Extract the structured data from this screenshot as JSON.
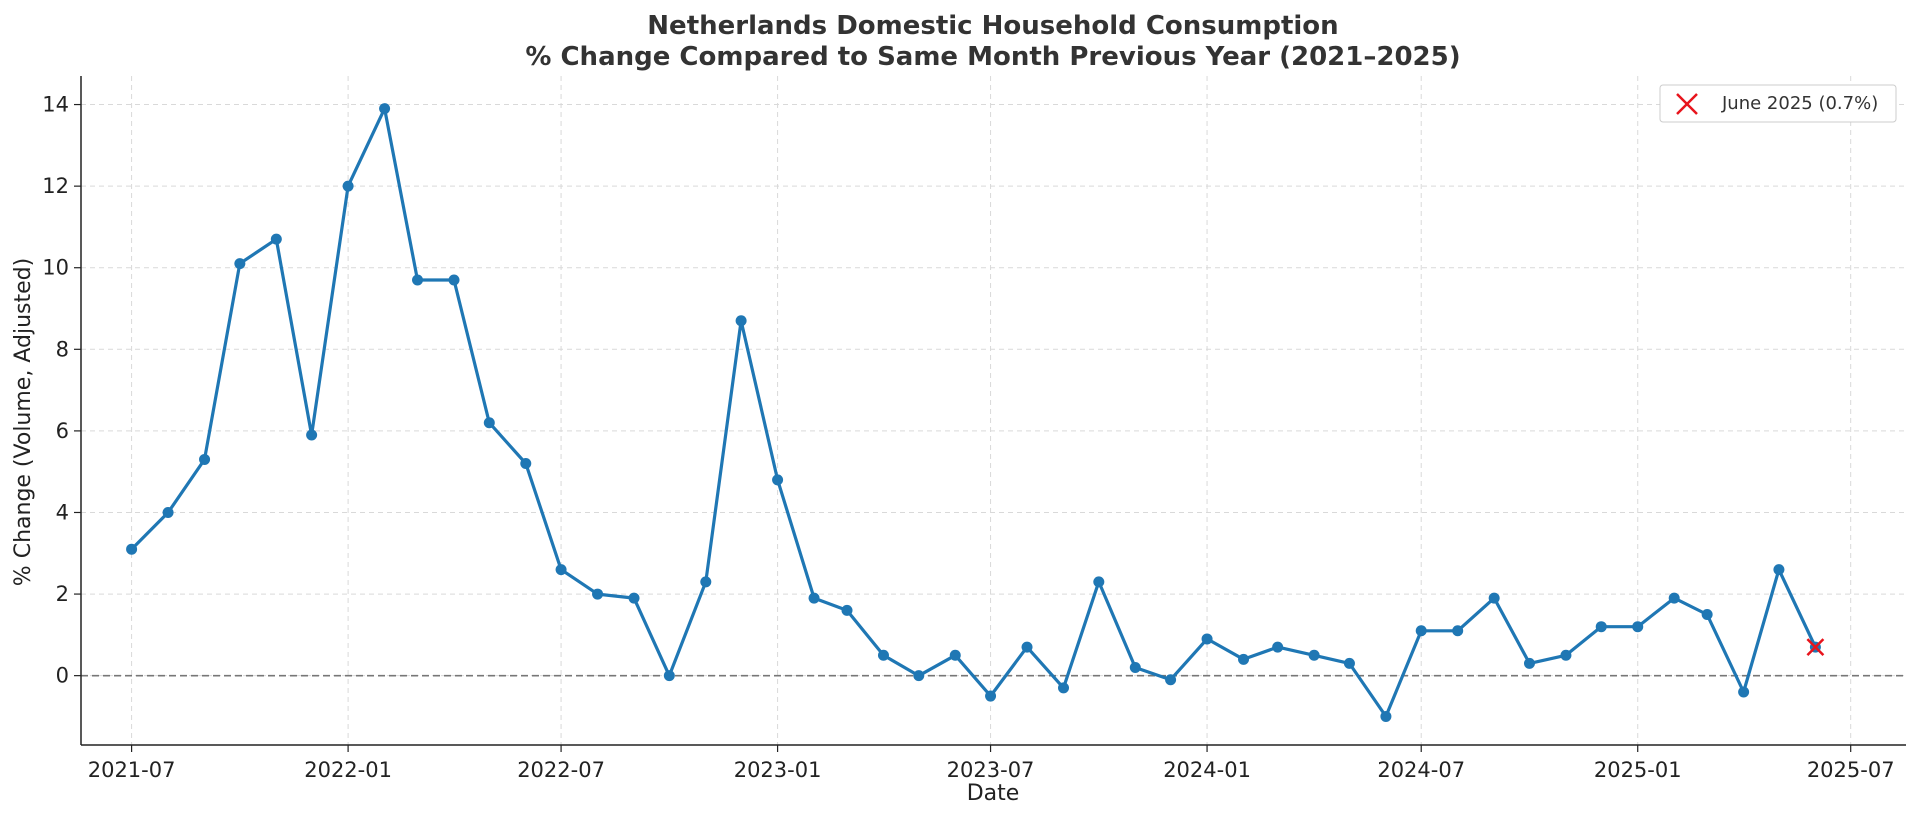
{
  "chart_data": {
    "type": "line",
    "title_line1": "Netherlands Domestic Household Consumption",
    "title_line2": "% Change Compared to Same Month Previous Year (2021–2025)",
    "xlabel": "Date",
    "ylabel": "% Change (Volume, Adjusted)",
    "x_ticks": [
      "2021-07",
      "2022-01",
      "2022-07",
      "2023-01",
      "2023-07",
      "2024-01",
      "2024-07",
      "2025-01",
      "2025-07"
    ],
    "y_ticks": [
      0,
      2,
      4,
      6,
      8,
      10,
      12,
      14
    ],
    "ylim": [
      -1.7,
      14.7
    ],
    "xlim": [
      "2021-05-19",
      "2025-08-17"
    ],
    "grid": true,
    "reference_line": 0,
    "series": [
      {
        "color": "#1f77b4",
        "x": [
          "2021-07",
          "2021-08",
          "2021-09",
          "2021-10",
          "2021-11",
          "2021-12",
          "2022-01",
          "2022-02",
          "2022-03",
          "2022-04",
          "2022-05",
          "2022-06",
          "2022-07",
          "2022-08",
          "2022-09",
          "2022-10",
          "2022-11",
          "2022-12",
          "2023-01",
          "2023-02",
          "2023-03",
          "2023-04",
          "2023-05",
          "2023-06",
          "2023-07",
          "2023-08",
          "2023-09",
          "2023-10",
          "2023-11",
          "2023-12",
          "2024-01",
          "2024-02",
          "2024-03",
          "2024-04",
          "2024-05",
          "2024-06",
          "2024-07",
          "2024-08",
          "2024-09",
          "2024-10",
          "2024-11",
          "2024-12",
          "2025-01",
          "2025-02",
          "2025-03",
          "2025-04",
          "2025-05",
          "2025-06"
        ],
        "values": [
          3.1,
          4.0,
          5.3,
          10.1,
          10.7,
          5.9,
          12.0,
          13.9,
          9.7,
          9.7,
          6.2,
          5.2,
          2.6,
          2.0,
          1.9,
          0.0,
          2.3,
          8.7,
          4.8,
          1.9,
          1.6,
          0.5,
          0.0,
          0.5,
          -0.5,
          0.7,
          -0.3,
          2.3,
          0.2,
          -0.1,
          0.9,
          0.4,
          0.7,
          0.5,
          0.3,
          -1.0,
          1.1,
          1.1,
          1.9,
          0.3,
          0.5,
          1.2,
          1.2,
          1.9,
          1.5,
          -0.4,
          2.6,
          0.7
        ]
      }
    ],
    "highlight": {
      "label": "June 2025 (0.7%)",
      "x": "2025-06",
      "value": 0.7,
      "color": "#e8141c"
    },
    "legend_position": "top-right"
  }
}
